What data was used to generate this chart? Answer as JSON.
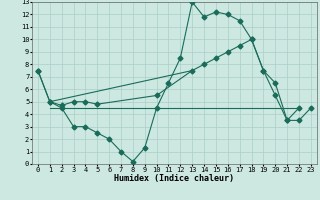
{
  "xlabel": "Humidex (Indice chaleur)",
  "bg_color": "#cce8e0",
  "grid_color": "#aacfc8",
  "line_color": "#1a6b5a",
  "xlim": [
    -0.5,
    23.5
  ],
  "ylim": [
    0,
    13
  ],
  "xticks": [
    0,
    1,
    2,
    3,
    4,
    5,
    6,
    7,
    8,
    9,
    10,
    11,
    12,
    13,
    14,
    15,
    16,
    17,
    18,
    19,
    20,
    21,
    22,
    23
  ],
  "yticks": [
    0,
    1,
    2,
    3,
    4,
    5,
    6,
    7,
    8,
    9,
    10,
    11,
    12,
    13
  ],
  "line1_x": [
    0,
    1,
    2,
    3,
    4,
    5,
    6,
    7,
    8,
    9,
    10,
    11,
    12,
    13,
    14,
    15,
    16,
    17,
    18,
    19,
    20,
    21,
    22
  ],
  "line1_y": [
    7.5,
    5.0,
    4.5,
    3.0,
    3.0,
    2.5,
    2.0,
    1.0,
    0.2,
    1.3,
    4.5,
    6.5,
    8.5,
    13.0,
    11.8,
    12.2,
    12.0,
    11.5,
    10.0,
    7.5,
    5.5,
    3.5,
    4.5
  ],
  "line2_x": [
    0,
    1,
    2,
    3,
    4,
    5,
    10,
    13,
    14,
    15,
    16,
    17,
    18,
    19,
    20,
    21,
    22,
    23
  ],
  "line2_y": [
    7.5,
    5.0,
    4.7,
    5.0,
    5.0,
    4.8,
    5.5,
    7.5,
    8.0,
    8.5,
    9.0,
    9.5,
    10.0,
    7.5,
    6.5,
    3.5,
    3.5,
    4.5
  ],
  "line3_x": [
    1,
    13
  ],
  "line3_y": [
    5.0,
    7.5
  ],
  "line4_x": [
    1,
    22
  ],
  "line4_y": [
    4.5,
    4.5
  ],
  "marker_size": 2.5,
  "lw": 0.8,
  "xlabel_fontsize": 6,
  "tick_fontsize": 5
}
